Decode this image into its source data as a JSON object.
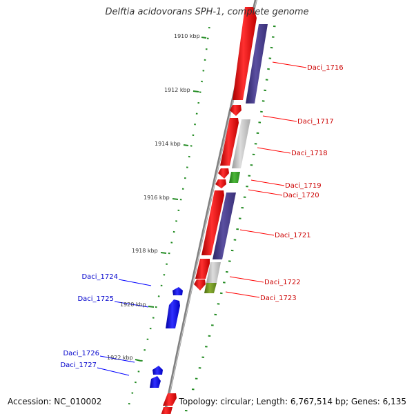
{
  "title": "Delftia acidovorans SPH-1, complete genome",
  "accession_text": "Accession: NC_010002",
  "summary_text": "Topology: circular; Length: 6,767,514 bp; Genes: 6,135",
  "colors": {
    "forward_gene": "#ff0000",
    "reverse_gene": "#0000ff",
    "cds_purple": "#4a3f8c",
    "cds_grey": "#bbbbbb",
    "cds_green": "#3a9a2a",
    "cds_olive": "#6b8e23",
    "axis": "#777777",
    "tick": "#228b22"
  },
  "scale_ticks": [
    {
      "label": "1910 kbp"
    },
    {
      "label": "1912 kbp"
    },
    {
      "label": "1914 kbp"
    },
    {
      "label": "1916 kbp"
    },
    {
      "label": "1918 kbp"
    },
    {
      "label": "1920 kbp"
    },
    {
      "label": "1922 kbp"
    }
  ],
  "forward_genes": [
    {
      "name": "Daci_1716"
    },
    {
      "name": "Daci_1717"
    },
    {
      "name": "Daci_1718"
    },
    {
      "name": "Daci_1719"
    },
    {
      "name": "Daci_1720"
    },
    {
      "name": "Daci_1721"
    },
    {
      "name": "Daci_1722"
    },
    {
      "name": "Daci_1723"
    }
  ],
  "reverse_genes": [
    {
      "name": "Daci_1724"
    },
    {
      "name": "Daci_1725"
    },
    {
      "name": "Daci_1726"
    },
    {
      "name": "Daci_1727"
    }
  ]
}
